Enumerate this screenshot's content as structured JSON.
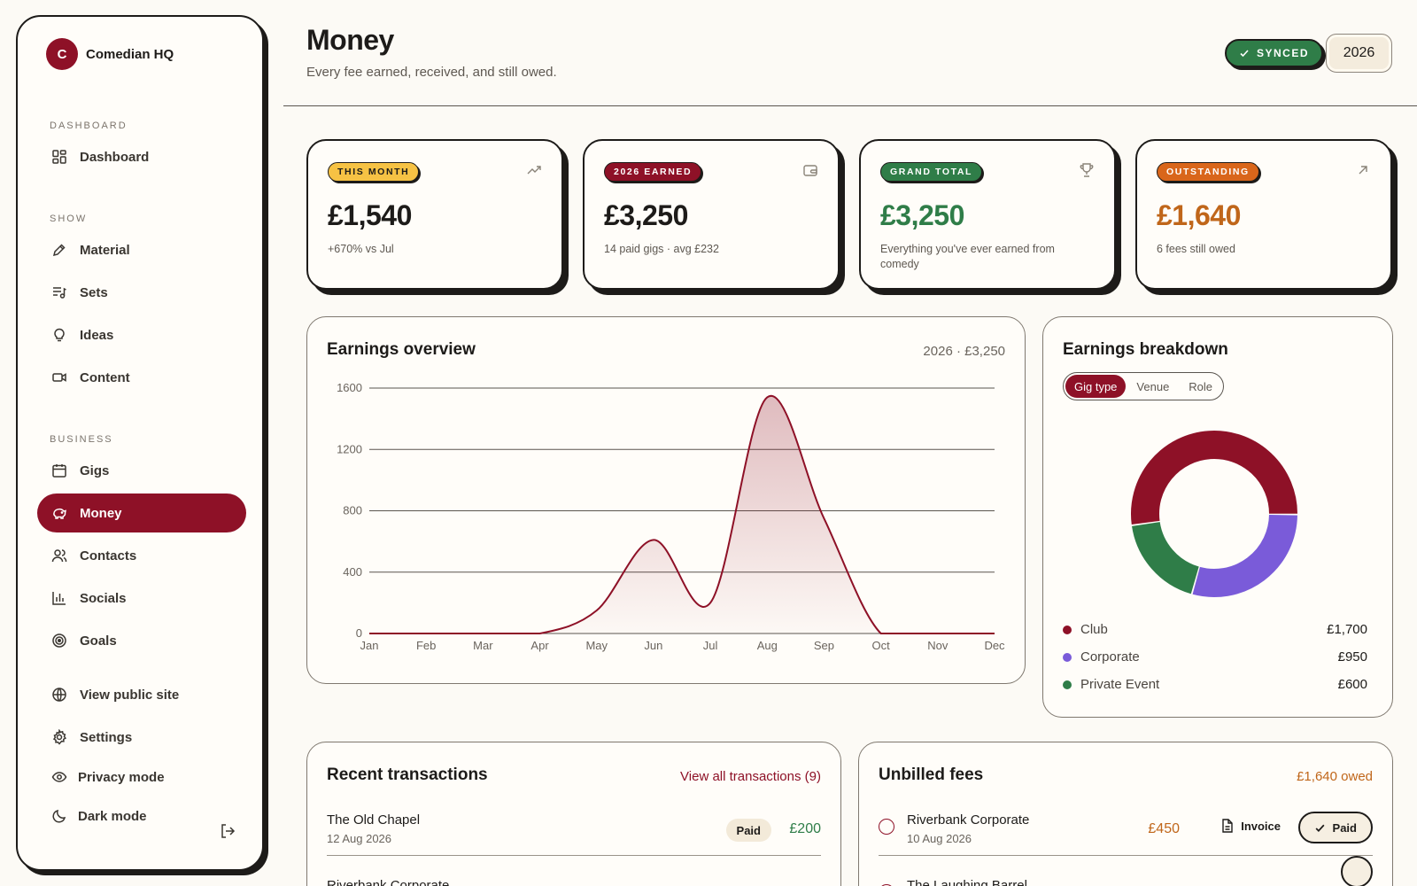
{
  "brand": {
    "initial": "C",
    "name": "Comedian HQ"
  },
  "nav": {
    "sections": {
      "dashboard": "DASHBOARD",
      "show": "SHOW",
      "business": "BUSINESS"
    },
    "items": {
      "dashboard": "Dashboard",
      "material": "Material",
      "sets": "Sets",
      "ideas": "Ideas",
      "content": "Content",
      "gigs": "Gigs",
      "money": "Money",
      "contacts": "Contacts",
      "socials": "Socials",
      "goals": "Goals",
      "public_site": "View public site",
      "settings": "Settings",
      "privacy": "Privacy mode",
      "dark": "Dark mode"
    }
  },
  "header": {
    "title": "Money",
    "subtitle": "Every fee earned, received, and still owed.",
    "synced": "SYNCED",
    "year": "2026"
  },
  "stats": [
    {
      "badge": "THIS MONTH",
      "value": "£1,540",
      "note": "+670% vs Jul",
      "icon": "trending-up-icon",
      "badge_bg": "#f6c244",
      "badge_fg": "#1d1b19",
      "value_color": "#1d1b19"
    },
    {
      "badge": "2026 EARNED",
      "value": "£3,250",
      "note": "14 paid gigs · avg £232",
      "icon": "wallet-icon",
      "badge_bg": "#8e1127",
      "badge_fg": "#ffffff",
      "value_color": "#1d1b19"
    },
    {
      "badge": "GRAND TOTAL",
      "value": "£3,250",
      "note": "Everything you've ever earned from comedy",
      "icon": "trophy-icon",
      "badge_bg": "#2f7d48",
      "badge_fg": "#ffffff",
      "value_color": "#2f7d48"
    },
    {
      "badge": "OUTSTANDING",
      "value": "£1,640",
      "note": "6 fees still owed",
      "icon": "arrow-up-right-icon",
      "badge_bg": "#d9661b",
      "badge_fg": "#ffffff",
      "value_color": "#c0661a"
    }
  ],
  "earnings": {
    "title": "Earnings overview",
    "meta": "2026 · £3,250"
  },
  "breakdown": {
    "title": "Earnings breakdown",
    "tabs": [
      "Gig type",
      "Venue",
      "Role"
    ],
    "active_tab": "Gig type"
  },
  "chart_data": [
    {
      "type": "area",
      "title": "Earnings overview",
      "categories": [
        "Jan",
        "Feb",
        "Mar",
        "Apr",
        "May",
        "Jun",
        "Jul",
        "Aug",
        "Sep",
        "Oct",
        "Nov",
        "Dec"
      ],
      "values": [
        0,
        0,
        0,
        0,
        150,
        610,
        200,
        1540,
        750,
        0,
        0,
        0
      ],
      "yticks": [
        0,
        400,
        800,
        1200,
        1600
      ],
      "ylim": [
        0,
        1600
      ],
      "grid": true,
      "color": "#8e1127"
    },
    {
      "type": "pie",
      "title": "Earnings breakdown",
      "labels": [
        "Club",
        "Corporate",
        "Private Event"
      ],
      "values": [
        1700,
        950,
        600
      ],
      "display": [
        "£1,700",
        "£950",
        "£600"
      ],
      "colors": [
        "#8e1127",
        "#7a5bd9",
        "#2f7d48"
      ]
    }
  ],
  "transactions": {
    "title": "Recent transactions",
    "link": "View all transactions (9)",
    "rows": [
      {
        "name": "The Old Chapel",
        "date": "12 Aug 2026",
        "status": "Paid",
        "amount": "£200"
      },
      {
        "name": "Riverbank Corporate",
        "date": "",
        "status": "",
        "amount": ""
      }
    ]
  },
  "unbilled": {
    "title": "Unbilled fees",
    "owed": "£1,640 owed",
    "invoice_label": "Invoice",
    "paid_label": "Paid",
    "rows": [
      {
        "name": "Riverbank Corporate",
        "date": "10 Aug 2026",
        "amount": "£450"
      },
      {
        "name": "The Laughing Barrel",
        "date": "",
        "amount": ""
      }
    ]
  }
}
